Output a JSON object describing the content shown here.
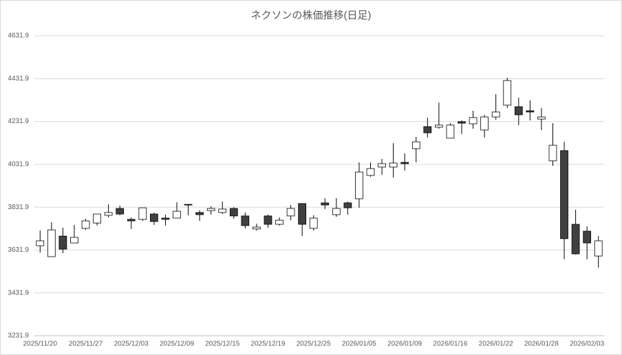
{
  "chart_data": {
    "type": "candlestick",
    "title": "ネクソンの株価推移(日足)",
    "categories": [
      "2025/11/20",
      null,
      null,
      null,
      "2025/11/27",
      null,
      null,
      null,
      "2025/12/03",
      null,
      null,
      null,
      "2025/12/09",
      null,
      null,
      null,
      "2025/12/15",
      null,
      null,
      null,
      "2025/12/19",
      null,
      null,
      null,
      "2025/12/25",
      null,
      null,
      null,
      "2026/01/05",
      null,
      null,
      null,
      "2026/01/09",
      null,
      null,
      null,
      "2026/01/16",
      null,
      null,
      null,
      "2026/01/22",
      null,
      null,
      null,
      "2026/01/28",
      null,
      null,
      null,
      "2026/02/03",
      null
    ],
    "open": [
      3652,
      3601,
      3697,
      3665,
      3733,
      3758,
      3794,
      3826,
      3775,
      3775,
      3800,
      3781,
      3781,
      3845,
      3807,
      3816,
      3807,
      3826,
      3791,
      3730,
      3791,
      3752,
      3791,
      3849,
      3733,
      3852,
      3797,
      3852,
      3871,
      3980,
      4019,
      4019,
      4041,
      4105,
      4208,
      4205,
      4154,
      4231,
      4221,
      4192,
      4253,
      4308,
      4301,
      4282,
      4243,
      4048,
      4096,
      3752,
      3720,
      3604
    ],
    "high": [
      3723,
      3762,
      3736,
      3749,
      3778,
      3800,
      3845,
      3839,
      3784,
      3829,
      3807,
      3797,
      3855,
      3845,
      3817,
      3836,
      3858,
      3832,
      3807,
      3755,
      3797,
      3784,
      3842,
      3849,
      3794,
      3874,
      3874,
      3858,
      4041,
      4041,
      4057,
      4131,
      4083,
      4160,
      4250,
      4320,
      4224,
      4237,
      4282,
      4263,
      4359,
      4436,
      4343,
      4330,
      4295,
      4224,
      4137,
      3820,
      3743,
      3697
    ],
    "low": [
      3620,
      3601,
      3617,
      3665,
      3726,
      3746,
      3784,
      3794,
      3730,
      3768,
      3749,
      3746,
      3781,
      3794,
      3768,
      3797,
      3800,
      3778,
      3733,
      3723,
      3736,
      3746,
      3771,
      3697,
      3723,
      3823,
      3787,
      3797,
      3829,
      3974,
      3983,
      3970,
      4003,
      4041,
      4157,
      4198,
      4154,
      4173,
      4198,
      4157,
      4240,
      4295,
      4215,
      4237,
      4192,
      4025,
      3589,
      3611,
      3589,
      3550
    ],
    "close": [
      3675,
      3726,
      3636,
      3691,
      3768,
      3800,
      3807,
      3800,
      3768,
      3829,
      3765,
      3775,
      3813,
      3842,
      3797,
      3826,
      3823,
      3791,
      3746,
      3739,
      3752,
      3771,
      3826,
      3752,
      3781,
      3842,
      3826,
      3829,
      3996,
      4012,
      4035,
      4038,
      4035,
      4137,
      4179,
      4215,
      4215,
      4224,
      4250,
      4253,
      4276,
      4423,
      4263,
      4276,
      4253,
      4121,
      3685,
      3614,
      3665,
      3675
    ],
    "up_color": "#ffffff",
    "down_color": "#404040",
    "ylim": [
      3231.9,
      4631.9
    ],
    "yticks": [
      3231.9,
      3431.9,
      3631.9,
      3831.9,
      4031.9,
      4231.9,
      4431.9,
      4631.9
    ],
    "grid": true
  }
}
